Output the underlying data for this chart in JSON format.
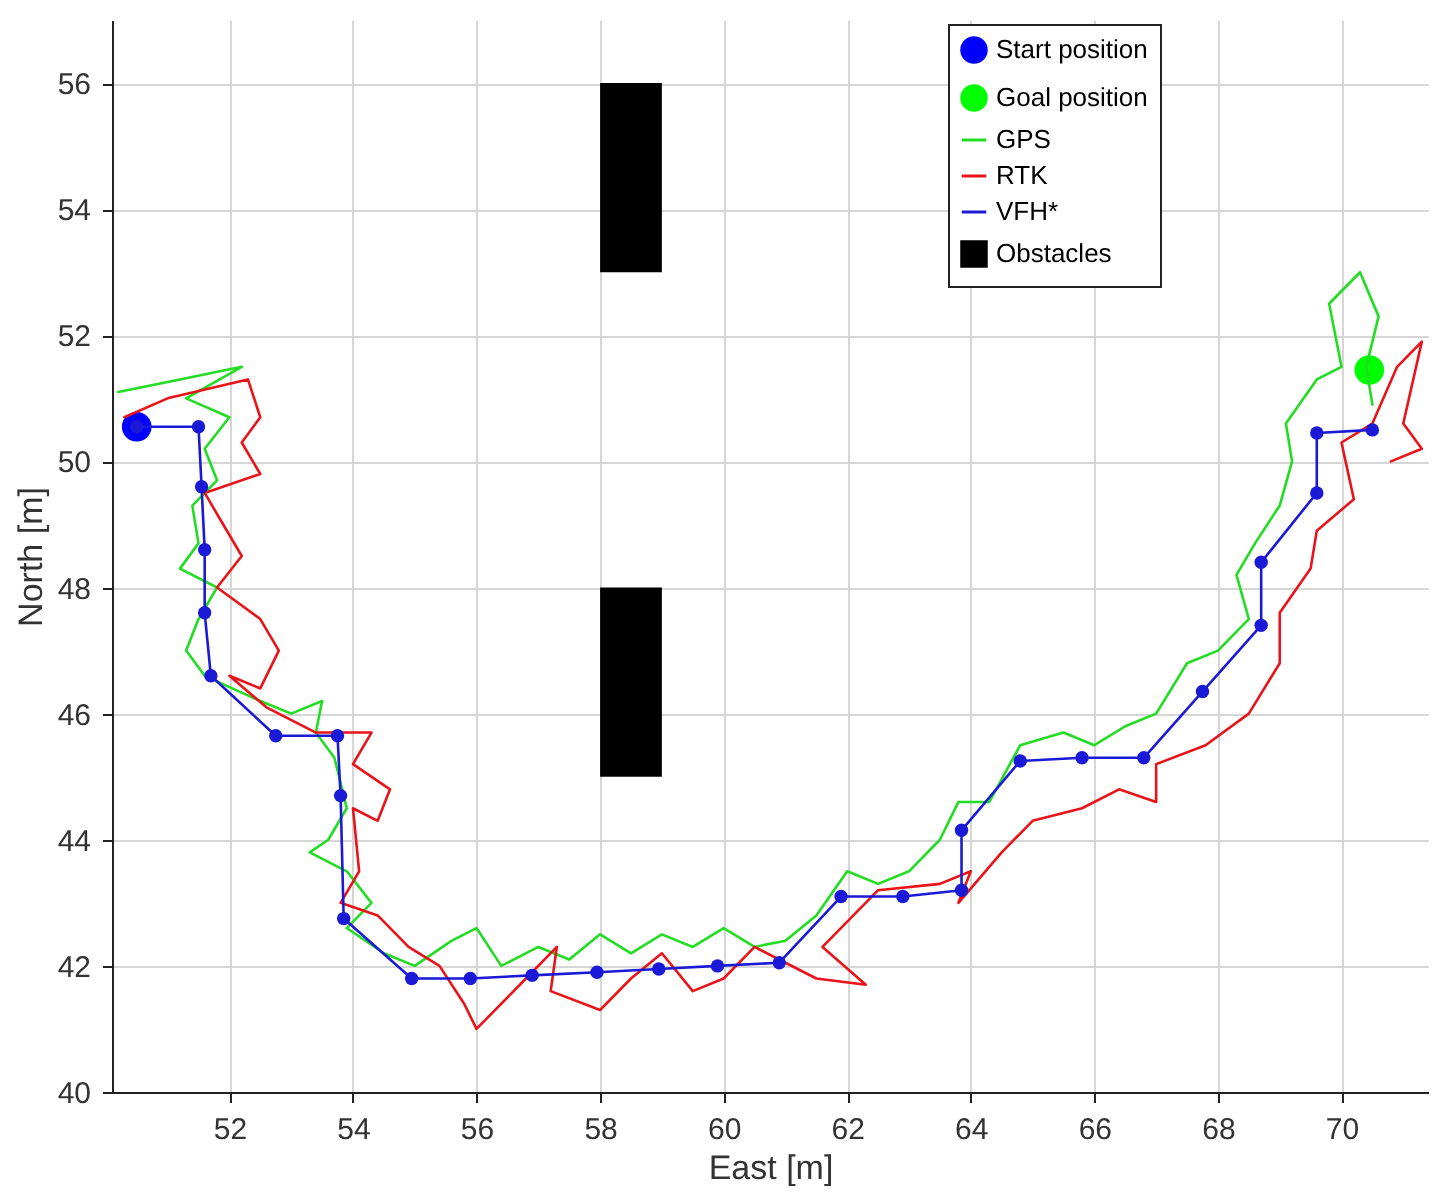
{
  "chart_data": {
    "type": "line",
    "xlabel": "East [m]",
    "ylabel": "North [m]",
    "xlim": [
      50.1,
      71.4
    ],
    "ylim": [
      40,
      57
    ],
    "xticks": [
      52,
      54,
      56,
      58,
      60,
      62,
      64,
      66,
      68,
      70
    ],
    "yticks": [
      40,
      42,
      44,
      46,
      48,
      50,
      52,
      54,
      56
    ],
    "grid": true,
    "legend": "top right",
    "series": [
      {
        "name": "Start position",
        "type": "scatter",
        "color": "#0000ff",
        "x": [
          50.5
        ],
        "values": [
          50.55
        ]
      },
      {
        "name": "Goal position",
        "type": "scatter",
        "color": "#00ff00",
        "x": [
          70.45
        ],
        "values": [
          51.45
        ]
      },
      {
        "name": "GPS",
        "color": "#22dd22",
        "x": [
          50.2,
          51.2,
          52.2,
          51.3,
          52.0,
          51.6,
          51.8,
          51.4,
          51.5,
          51.2,
          51.8,
          51.5,
          51.3,
          51.6,
          52.5,
          53.0,
          53.5,
          53.4,
          53.7,
          53.9,
          53.6,
          53.3,
          53.9,
          54.3,
          53.9,
          54.5,
          55.0,
          55.6,
          56.0,
          56.4,
          57.0,
          57.5,
          58.0,
          58.5,
          59.0,
          59.5,
          60.0,
          60.5,
          61.0,
          61.5,
          62.0,
          62.5,
          63.0,
          63.5,
          63.8,
          64.3,
          64.8,
          65.5,
          66.0,
          66.5,
          67.0,
          67.5,
          68.0,
          68.5,
          68.3,
          68.6,
          69.0,
          69.2,
          69.1,
          69.6,
          70.0,
          69.8,
          70.3,
          70.6,
          70.4,
          70.5
        ],
        "values": [
          51.1,
          51.3,
          51.5,
          51.0,
          50.7,
          50.2,
          49.7,
          49.3,
          48.7,
          48.3,
          48.0,
          47.5,
          47.0,
          46.6,
          46.2,
          46.0,
          46.2,
          45.7,
          45.3,
          44.5,
          44.0,
          43.8,
          43.5,
          43.0,
          42.6,
          42.2,
          42.0,
          42.4,
          42.6,
          42.0,
          42.3,
          42.1,
          42.5,
          42.2,
          42.5,
          42.3,
          42.6,
          42.3,
          42.4,
          42.8,
          43.5,
          43.3,
          43.5,
          44.0,
          44.6,
          44.6,
          45.5,
          45.7,
          45.5,
          45.8,
          46.0,
          46.8,
          47.0,
          47.5,
          48.2,
          48.7,
          49.3,
          50.0,
          50.6,
          51.3,
          51.5,
          52.5,
          53.0,
          52.3,
          51.5,
          50.9
        ]
      },
      {
        "name": "RTK",
        "color": "#e8141a",
        "x": [
          50.3,
          51.0,
          52.3,
          52.5,
          52.2,
          52.5,
          51.6,
          51.9,
          52.2,
          51.8,
          52.5,
          52.8,
          52.5,
          52.0,
          52.6,
          53.4,
          54.3,
          54.0,
          54.6,
          54.4,
          54.0,
          54.1,
          53.8,
          54.4,
          54.9,
          55.4,
          55.8,
          56.0,
          56.8,
          57.3,
          57.2,
          58.0,
          58.5,
          59.0,
          59.5,
          60.0,
          60.5,
          61.5,
          62.3,
          61.6,
          62.5,
          63.5,
          64.0,
          63.8,
          64.5,
          65.0,
          65.8,
          66.4,
          67.0,
          67.0,
          67.8,
          68.5,
          69.0,
          69.0,
          69.5,
          69.6,
          70.2,
          70.0,
          70.5,
          70.9,
          71.3,
          71.0,
          71.3,
          70.8
        ],
        "values": [
          50.7,
          51.0,
          51.3,
          50.7,
          50.3,
          49.8,
          49.5,
          49.0,
          48.5,
          48.0,
          47.5,
          47.0,
          46.4,
          46.6,
          46.1,
          45.7,
          45.7,
          45.2,
          44.8,
          44.3,
          44.5,
          43.5,
          43.0,
          42.8,
          42.3,
          42.0,
          41.4,
          41.0,
          41.8,
          42.3,
          41.6,
          41.3,
          41.8,
          42.2,
          41.6,
          41.8,
          42.3,
          41.8,
          41.7,
          42.3,
          43.2,
          43.3,
          43.5,
          43.0,
          43.8,
          44.3,
          44.5,
          44.8,
          44.6,
          45.2,
          45.5,
          46.0,
          46.8,
          47.6,
          48.3,
          48.9,
          49.4,
          50.3,
          50.6,
          51.5,
          51.9,
          50.6,
          50.2,
          50.0
        ]
      },
      {
        "name": "VFH*",
        "color": "#1a1ad6",
        "marker": "circle",
        "x": [
          50.5,
          51.5,
          51.55,
          51.6,
          51.6,
          51.7,
          52.75,
          53.75,
          53.8,
          53.85,
          54.95,
          55.9,
          56.9,
          57.95,
          58.95,
          59.9,
          60.9,
          61.9,
          62.9,
          63.85,
          63.85,
          64.8,
          65.8,
          66.8,
          67.75,
          68.7,
          68.7,
          69.6,
          69.6,
          70.5
        ],
        "values": [
          50.55,
          50.55,
          49.6,
          48.6,
          47.6,
          46.6,
          45.65,
          45.65,
          44.7,
          42.75,
          41.8,
          41.8,
          41.85,
          41.9,
          41.95,
          42.0,
          42.05,
          43.1,
          43.1,
          43.2,
          44.15,
          45.25,
          45.3,
          45.3,
          46.35,
          47.4,
          48.4,
          49.5,
          50.45,
          50.5
        ]
      },
      {
        "name": "Obstacles",
        "type": "bar",
        "color": "#000000",
        "x": [
          58.5,
          58.5
        ],
        "base": [
          45,
          53
        ],
        "values": [
          3,
          3
        ]
      }
    ]
  }
}
